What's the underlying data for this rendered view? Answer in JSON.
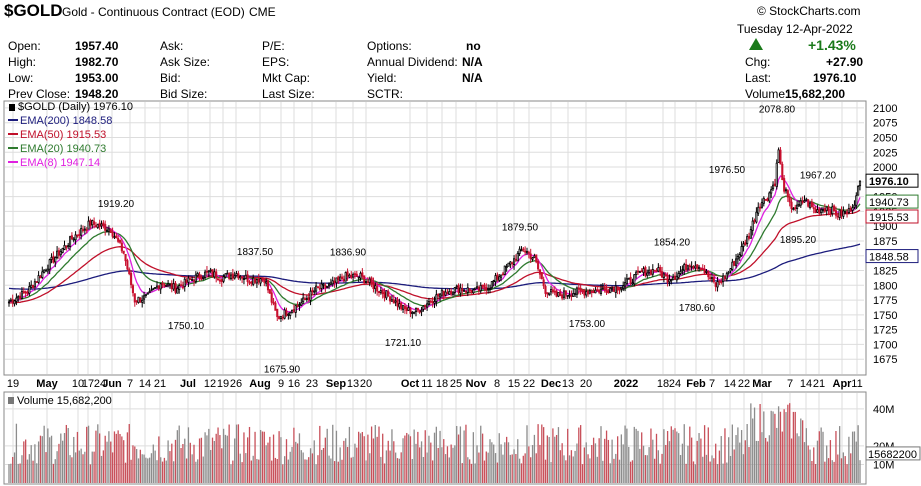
{
  "header": {
    "symbol": "$GOLD",
    "description": "Gold - Continuous Contract (EOD)",
    "exchange": "CME",
    "credit": "© StockCharts.com",
    "date": "Tuesday  12-Apr-2022",
    "pct_change": "+1.43%",
    "chg_label": "Chg:",
    "chg_value": "+27.90",
    "last_label": "Last:",
    "last_value": "1976.10",
    "volume_label": "Volume:",
    "volume_value": "15,682,200",
    "fields": [
      {
        "label": "Open:",
        "value": "1957.40"
      },
      {
        "label": "High:",
        "value": "1982.70"
      },
      {
        "label": "Low:",
        "value": "1953.00"
      },
      {
        "label": "Prev Close:",
        "value": "1948.20"
      }
    ],
    "col2": [
      "Ask:",
      "Ask Size:",
      "Bid:",
      "Bid Size:"
    ],
    "col3": [
      "P/E:",
      "EPS:",
      "Mkt Cap:",
      "Last Size:"
    ],
    "col4": [
      {
        "label": "Options:",
        "value": "no"
      },
      {
        "label": "Annual Dividend:",
        "value": "N/A"
      },
      {
        "label": "Yield:",
        "value": "N/A"
      },
      {
        "label": "SCTR:",
        "value": ""
      }
    ]
  },
  "chart_data": {
    "type": "candlestick",
    "title": "$GOLD (Daily) 1976.10",
    "ylim": [
      1650,
      2110
    ],
    "y_ticks": [
      1675,
      1700,
      1725,
      1750,
      1775,
      1800,
      1825,
      1850,
      1875,
      1900,
      1925,
      1950,
      1975,
      2000,
      2025,
      2050,
      2075,
      2100
    ],
    "x_tick_labels": [
      "19",
      "May",
      "10",
      "17",
      "24",
      "Jun",
      "7",
      "14",
      "21",
      "Jul",
      "12",
      "19",
      "26",
      "Aug",
      "9",
      "16",
      "23",
      "Sep",
      "13",
      "20",
      "Oct",
      "11",
      "18",
      "25",
      "Nov",
      "8",
      "15",
      "22",
      "Dec",
      "13",
      "20",
      "2022",
      "18",
      "24",
      "Feb",
      "7",
      "14",
      "22",
      "Mar",
      "7",
      "14",
      "21",
      "Apr",
      "11"
    ],
    "price_anchors": [
      [
        0,
        1772
      ],
      [
        10,
        1790
      ],
      [
        20,
        1830
      ],
      [
        27,
        1855
      ],
      [
        35,
        1882
      ],
      [
        44,
        1905
      ],
      [
        50,
        1900
      ],
      [
        55,
        1895
      ],
      [
        62,
        1855
      ],
      [
        68,
        1775
      ],
      [
        75,
        1780
      ],
      [
        82,
        1805
      ],
      [
        90,
        1795
      ],
      [
        100,
        1812
      ],
      [
        108,
        1822
      ],
      [
        115,
        1813
      ],
      [
        123,
        1820
      ],
      [
        130,
        1810
      ],
      [
        138,
        1812
      ],
      [
        145,
        1745
      ],
      [
        150,
        1755
      ],
      [
        158,
        1770
      ],
      [
        166,
        1793
      ],
      [
        174,
        1800
      ],
      [
        182,
        1815
      ],
      [
        190,
        1815
      ],
      [
        198,
        1797
      ],
      [
        206,
        1780
      ],
      [
        213,
        1760
      ],
      [
        220,
        1755
      ],
      [
        228,
        1775
      ],
      [
        236,
        1790
      ],
      [
        244,
        1795
      ],
      [
        252,
        1790
      ],
      [
        260,
        1800
      ],
      [
        266,
        1820
      ],
      [
        272,
        1840
      ],
      [
        278,
        1862
      ],
      [
        284,
        1845
      ],
      [
        290,
        1792
      ],
      [
        296,
        1782
      ],
      [
        304,
        1788
      ],
      [
        312,
        1790
      ],
      [
        322,
        1793
      ],
      [
        332,
        1800
      ],
      [
        342,
        1822
      ],
      [
        350,
        1826
      ],
      [
        356,
        1812
      ],
      [
        362,
        1820
      ],
      [
        368,
        1838
      ],
      [
        374,
        1832
      ],
      [
        378,
        1815
      ],
      [
        382,
        1800
      ],
      [
        388,
        1818
      ],
      [
        394,
        1850
      ],
      [
        400,
        1885
      ],
      [
        405,
        1935
      ],
      [
        410,
        1950
      ],
      [
        414,
        1975
      ],
      [
        416,
        2030
      ],
      [
        418,
        1975
      ],
      [
        422,
        1935
      ],
      [
        426,
        1930
      ],
      [
        430,
        1945
      ],
      [
        436,
        1925
      ],
      [
        442,
        1932
      ],
      [
        448,
        1920
      ],
      [
        454,
        1925
      ],
      [
        458,
        1948
      ],
      [
        460,
        1976.1
      ]
    ],
    "annotations": [
      {
        "text": "1919.20",
        "price": 1919.2
      },
      {
        "text": "1750.10",
        "price": 1750.1
      },
      {
        "text": "1837.50",
        "price": 1837.5
      },
      {
        "text": "1675.90",
        "price": 1675.9
      },
      {
        "text": "1836.90",
        "price": 1836.9
      },
      {
        "text": "1721.10",
        "price": 1721.1
      },
      {
        "text": "1879.50",
        "price": 1879.5
      },
      {
        "text": "1753.00",
        "price": 1753.0
      },
      {
        "text": "1854.20",
        "price": 1854.2
      },
      {
        "text": "1780.60",
        "price": 1780.6
      },
      {
        "text": "1976.50",
        "price": 1976.5
      },
      {
        "text": "2078.80",
        "price": 2078.8
      },
      {
        "text": "1967.20",
        "price": 1967.2
      },
      {
        "text": "1895.20",
        "price": 1895.2
      }
    ],
    "series": [
      {
        "name": "EMA(200)",
        "value": 1848.58,
        "color": "#1c1c7c"
      },
      {
        "name": "EMA(50)",
        "value": 1915.53,
        "color": "#c0102a"
      },
      {
        "name": "EMA(20)",
        "value": 1940.73,
        "color": "#2e7a2e"
      },
      {
        "name": "EMA(8)",
        "value": 1947.14,
        "color": "#e020e0"
      }
    ],
    "price_labels": [
      {
        "text": "1976.10",
        "value": 1976.1
      },
      {
        "text": "1940.73",
        "value": 1940.73
      },
      {
        "text": "1915.53",
        "value": 1915.53
      },
      {
        "text": "1848.58",
        "value": 1848.58
      }
    ],
    "legend": [
      {
        "text": "$GOLD (Daily) 1976.10",
        "color": "#000000"
      },
      {
        "text": "EMA(200) 1848.58",
        "color": "#1c1c7c"
      },
      {
        "text": "EMA(50) 1915.53",
        "color": "#c0102a"
      },
      {
        "text": "EMA(20) 1940.73",
        "color": "#2e7a2e"
      },
      {
        "text": "EMA(8) 1947.14",
        "color": "#e020e0"
      }
    ],
    "volume": {
      "title": "Volume 15,682,200",
      "ylim": [
        0,
        48000000
      ],
      "y_ticks": [
        {
          "label": "10M",
          "value": 10000000
        },
        {
          "label": "20M",
          "value": 20000000
        },
        {
          "label": "40M",
          "value": 40000000
        }
      ],
      "last_label": "15682200",
      "last_value": 15682200
    },
    "colors": {
      "up": "#000000",
      "down": "#c8102e",
      "vol_up": "#8c8c8c",
      "vol_down": "#c8505a",
      "grid": "#dddddd"
    }
  }
}
